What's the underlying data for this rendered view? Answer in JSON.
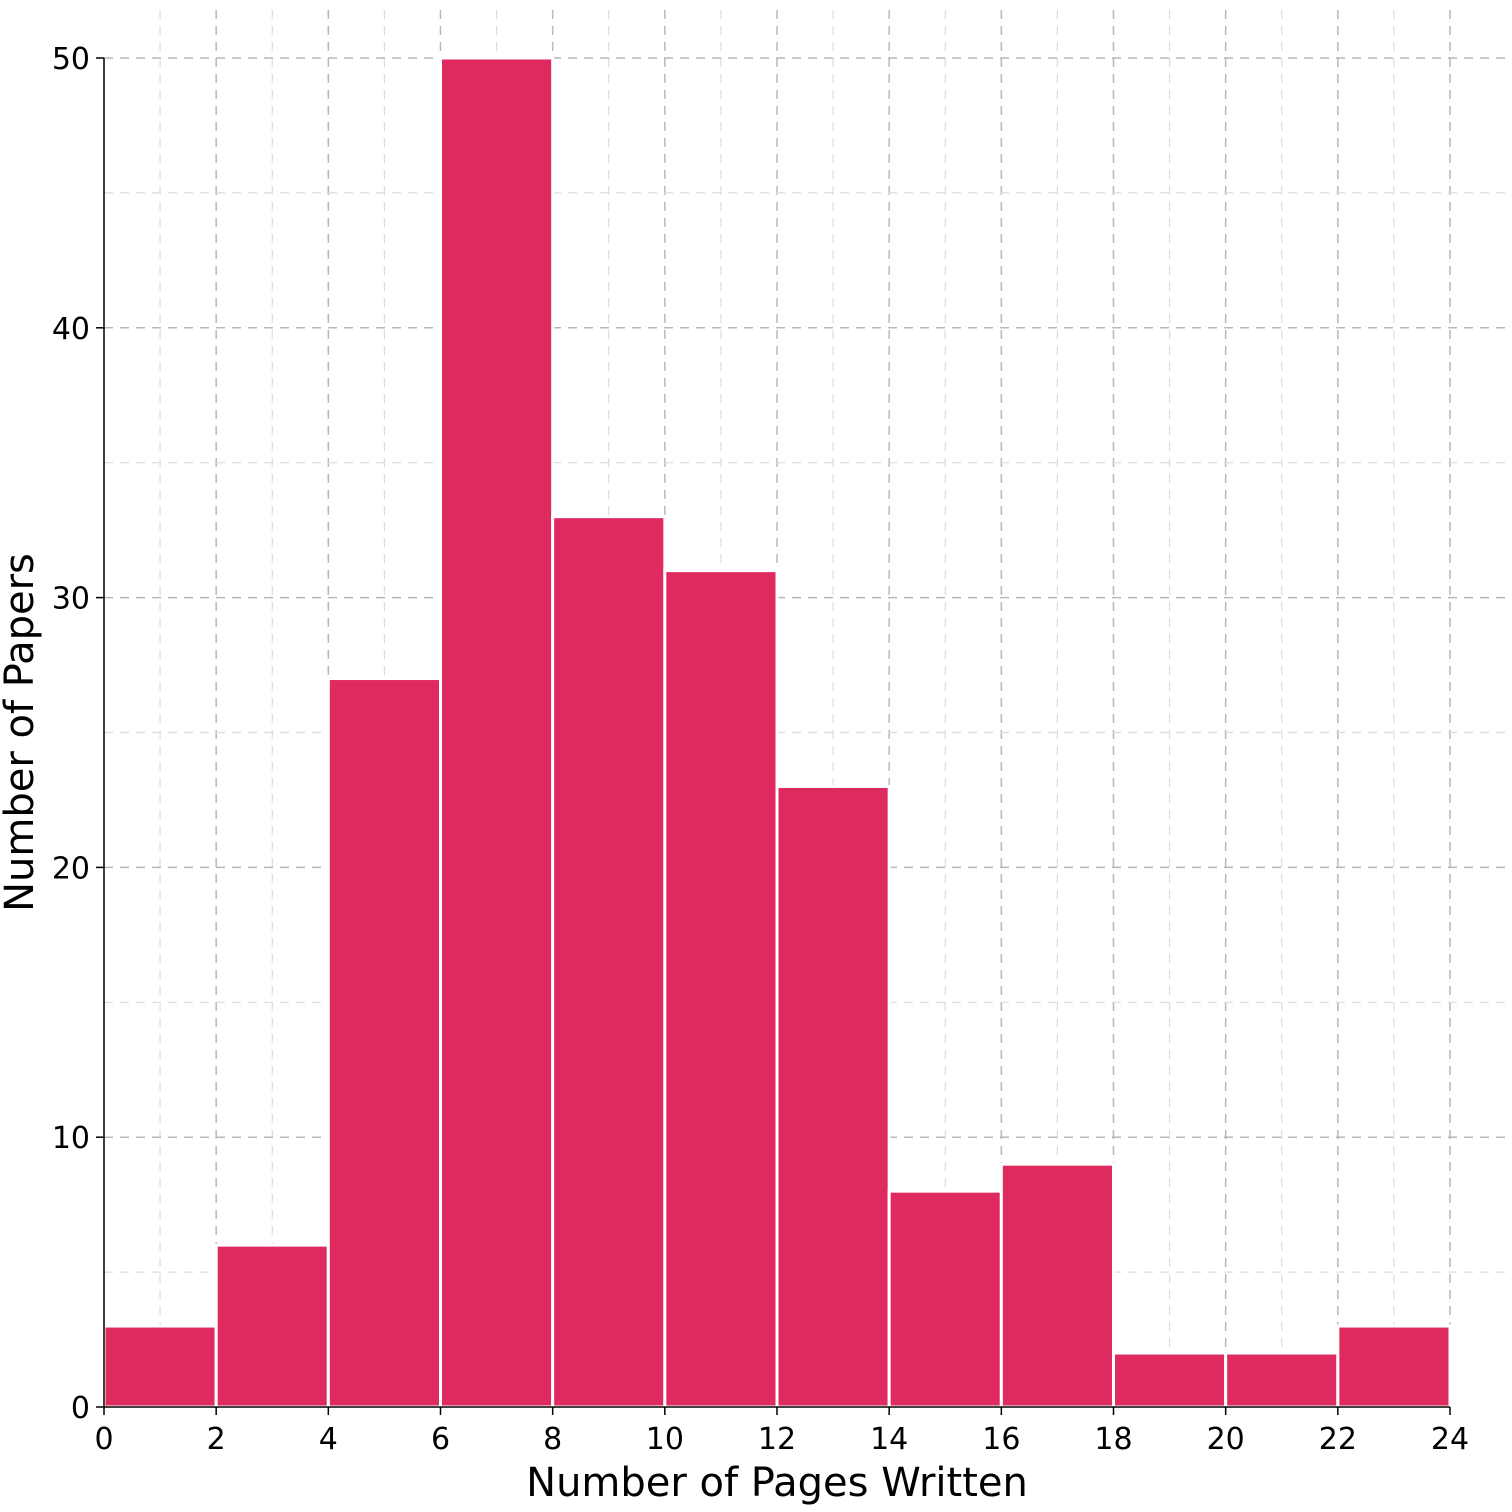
{
  "chart_data": {
    "type": "bar",
    "bin_edges": [
      0,
      2,
      4,
      6,
      8,
      10,
      12,
      14,
      16,
      18,
      20,
      22,
      24
    ],
    "values": [
      3,
      6,
      27,
      50,
      33,
      31,
      23,
      8,
      9,
      2,
      2,
      3
    ],
    "xlabel": "Number of Pages Written",
    "ylabel": "Number of Papers",
    "xlim": [
      0,
      24
    ],
    "ylim": [
      0,
      50
    ],
    "x_ticks": [
      0,
      2,
      4,
      6,
      8,
      10,
      12,
      14,
      16,
      18,
      20,
      22,
      24
    ],
    "y_ticks": [
      0,
      10,
      20,
      30,
      40,
      50
    ],
    "grid": true,
    "bar_color": "#de2a5f"
  }
}
